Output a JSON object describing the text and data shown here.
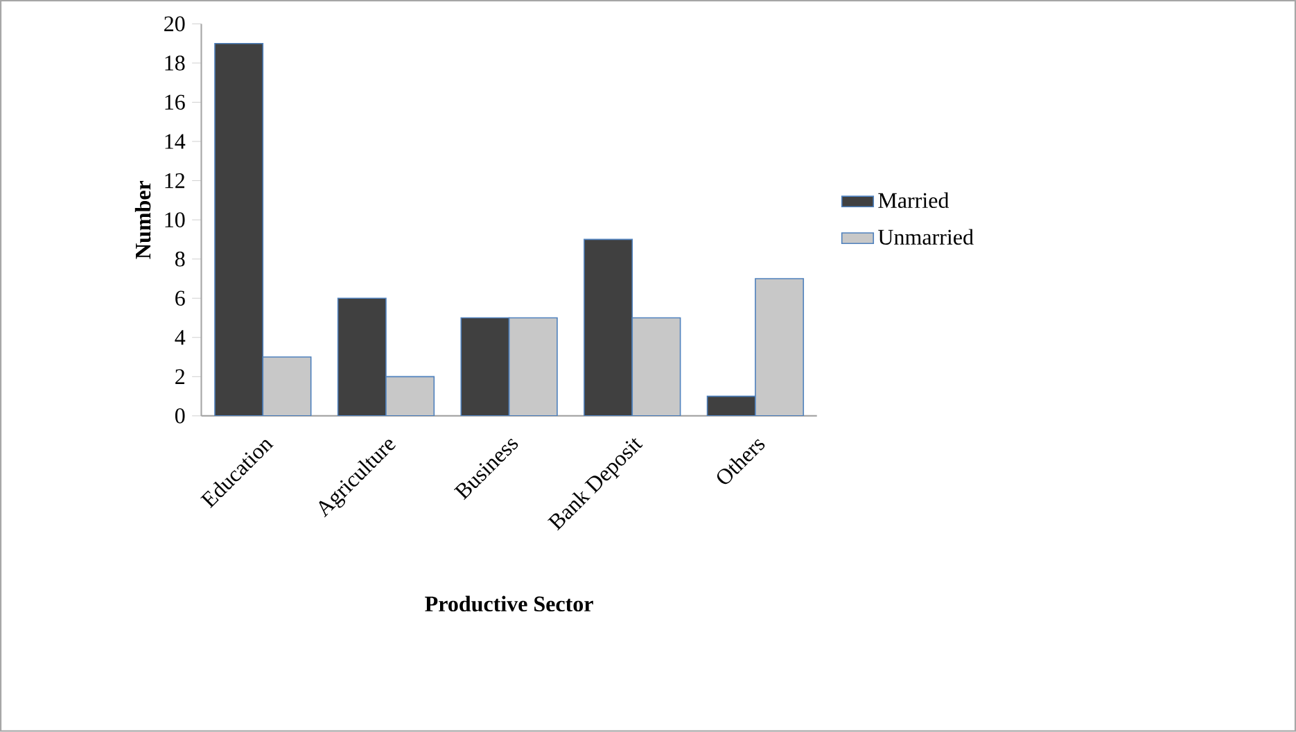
{
  "chart_data": {
    "type": "bar",
    "xlabel": "Productive Sector",
    "ylabel": "Number",
    "categories": [
      "Education",
      "Agriculture",
      "Business",
      "Bank Deposit",
      "Others"
    ],
    "series": [
      {
        "name": "Married",
        "color": "#404040",
        "values": [
          19,
          6,
          5,
          9,
          1
        ]
      },
      {
        "name": "Unmarried",
        "color": "#c8c8c8",
        "values": [
          3,
          2,
          5,
          5,
          7
        ]
      }
    ],
    "ylim": [
      0,
      20
    ],
    "yticks": [
      0,
      2,
      4,
      6,
      8,
      10,
      12,
      14,
      16,
      18,
      20
    ],
    "grid": false,
    "legend": "right"
  }
}
